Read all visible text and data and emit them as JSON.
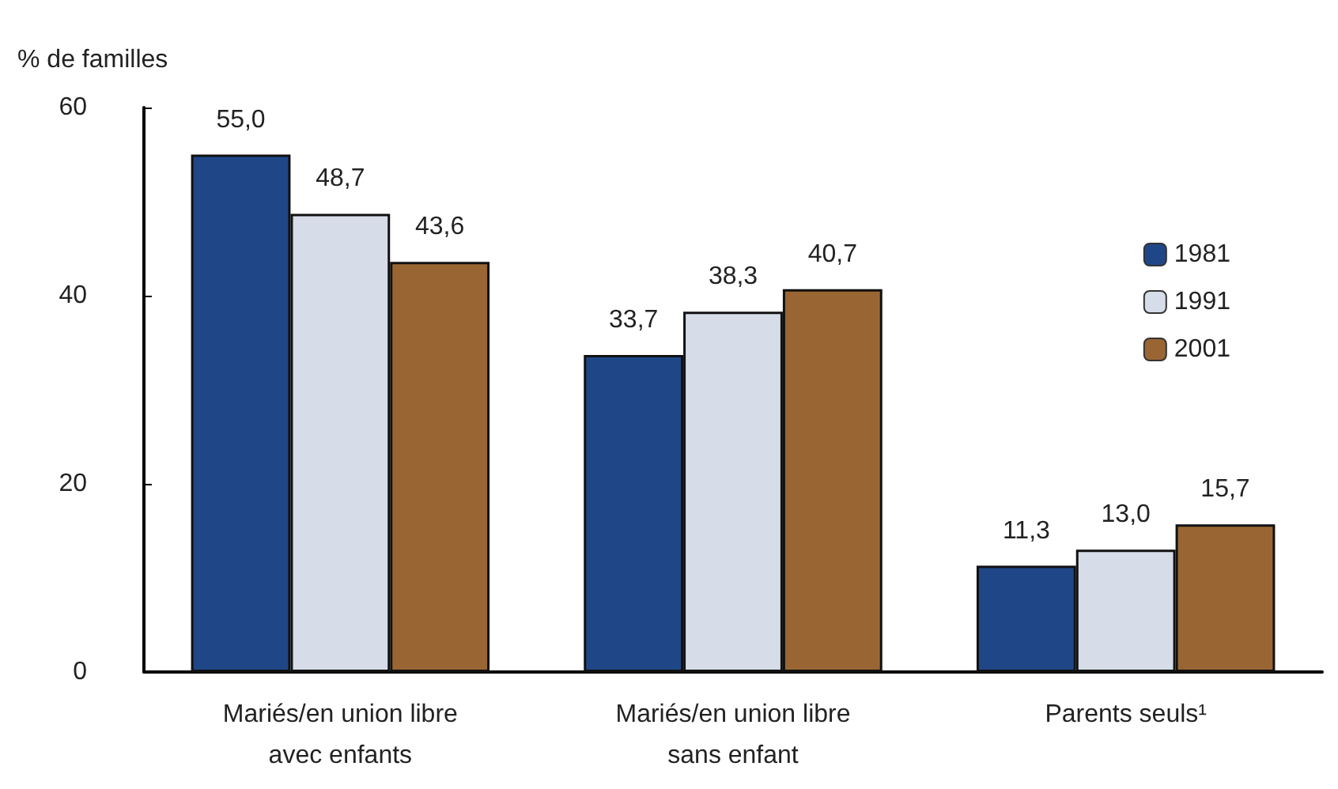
{
  "chart_data": {
    "type": "bar",
    "ylabel": "% de familles",
    "categories": [
      "Mariés/en union libre\navec enfants",
      "Mariés/en union libre\nsans enfant",
      "Parents seuls¹"
    ],
    "series": [
      {
        "name": "1981",
        "color": "#1f4788",
        "values": [
          55.0,
          33.7,
          11.3
        ],
        "value_labels": [
          "55,0",
          "33,7",
          "11,3"
        ]
      },
      {
        "name": "1991",
        "color": "#d6dde8",
        "values": [
          48.7,
          38.3,
          13.0
        ],
        "value_labels": [
          "48,7",
          "38,3",
          "13,0"
        ]
      },
      {
        "name": "2001",
        "color": "#996633",
        "values": [
          43.6,
          40.7,
          15.7
        ],
        "value_labels": [
          "43,6",
          "40,7",
          "15,7"
        ]
      }
    ],
    "ylim": [
      0,
      60
    ],
    "yticks": [
      0,
      20,
      40,
      60
    ],
    "grid": false,
    "legend": "top right"
  }
}
